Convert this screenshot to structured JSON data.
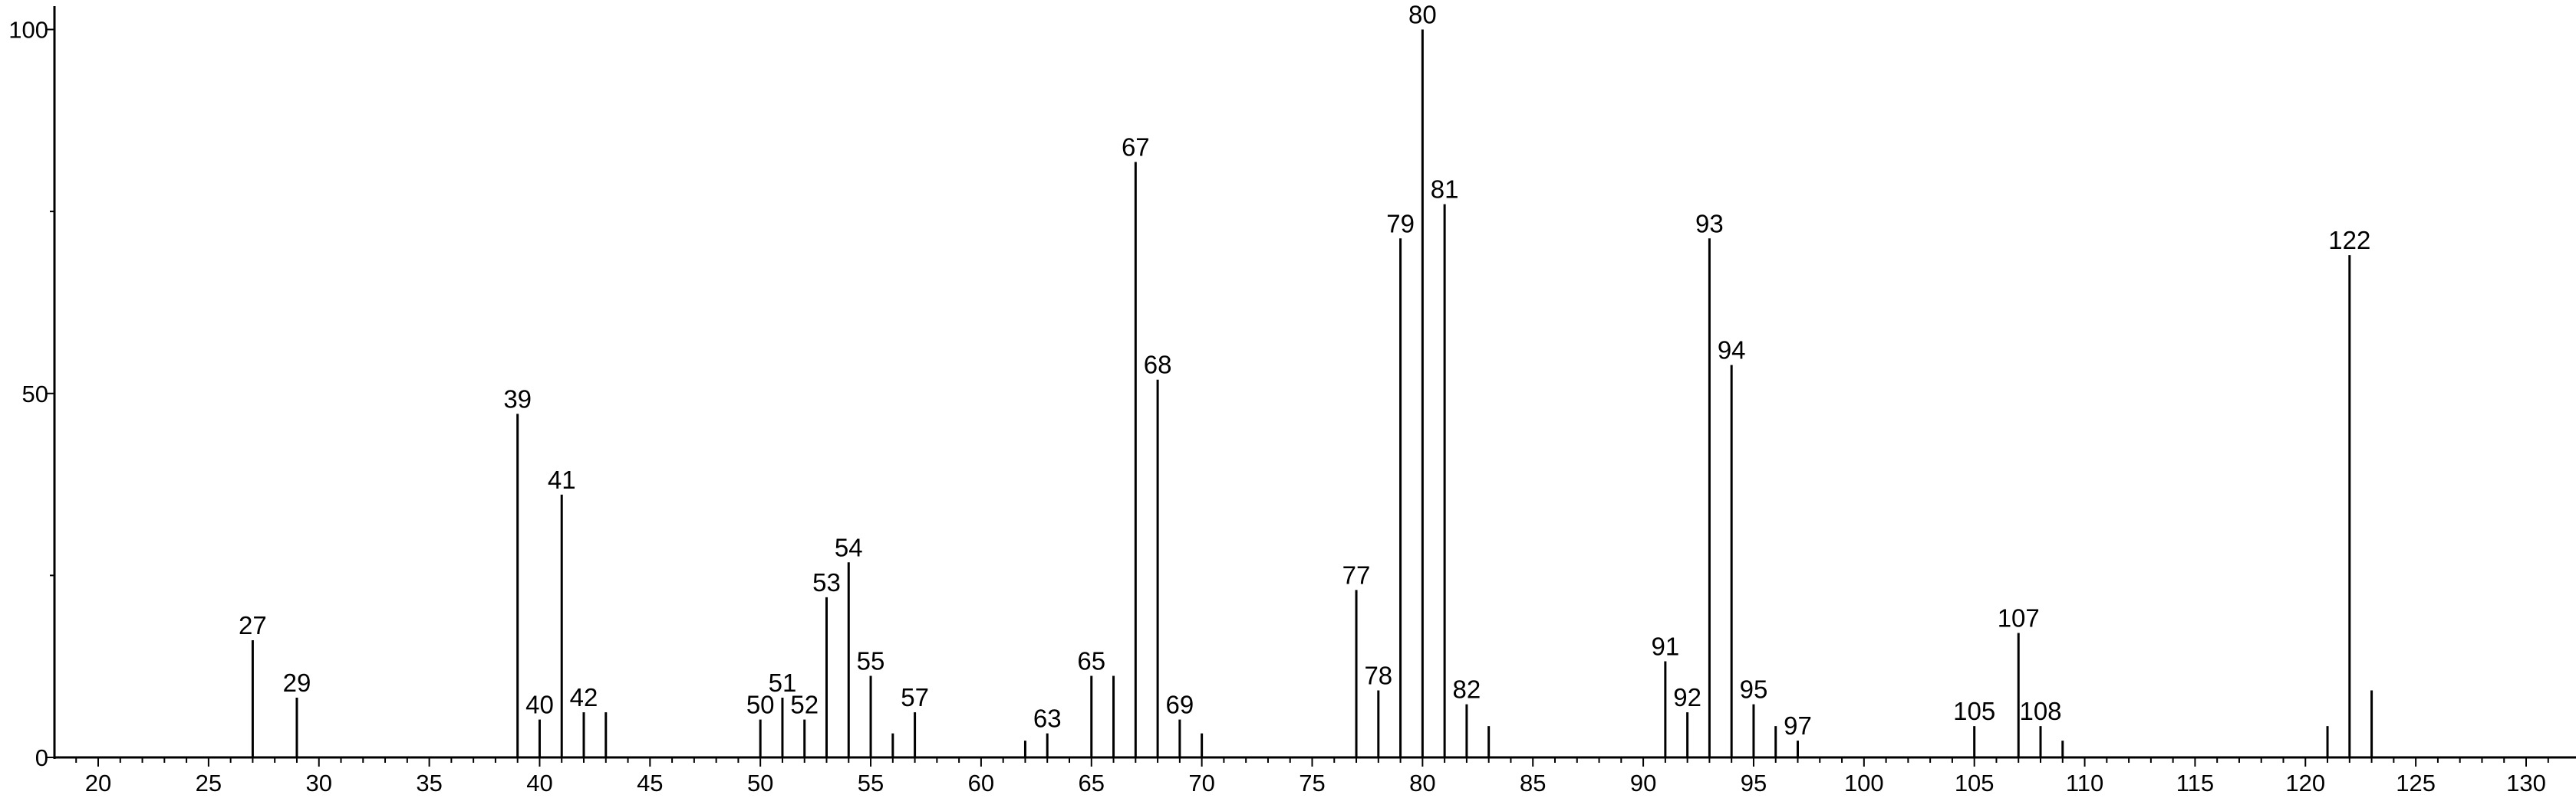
{
  "chart_data": {
    "type": "bar",
    "title": "",
    "xlabel": "",
    "ylabel": "",
    "xlim": [
      18.5,
      132
    ],
    "ylim": [
      0,
      100
    ],
    "grid": false,
    "x_major_ticks": [
      20,
      25,
      30,
      35,
      40,
      45,
      50,
      55,
      60,
      65,
      70,
      75,
      80,
      85,
      90,
      95,
      100,
      105,
      110,
      115,
      120,
      125,
      130
    ],
    "y_tick_labels": [
      0,
      50,
      100
    ],
    "y_minor_ticks": [
      25,
      75
    ],
    "color": "#000000",
    "peaks": [
      {
        "x": 27,
        "y": 16.1,
        "label": "27"
      },
      {
        "x": 29,
        "y": 8.2,
        "label": "29"
      },
      {
        "x": 39,
        "y": 47.2,
        "label": "39"
      },
      {
        "x": 40,
        "y": 5.2,
        "label": "40"
      },
      {
        "x": 41,
        "y": 36.1,
        "label": "41"
      },
      {
        "x": 42,
        "y": 6.2,
        "label": "42"
      },
      {
        "x": 43,
        "y": 6.2
      },
      {
        "x": 50,
        "y": 5.2,
        "label": "50"
      },
      {
        "x": 51,
        "y": 8.2,
        "label": "51"
      },
      {
        "x": 52,
        "y": 5.2,
        "label": "52"
      },
      {
        "x": 53,
        "y": 22.0,
        "label": "53"
      },
      {
        "x": 54,
        "y": 26.8,
        "label": "54"
      },
      {
        "x": 55,
        "y": 11.2,
        "label": "55"
      },
      {
        "x": 56,
        "y": 3.3
      },
      {
        "x": 57,
        "y": 6.2,
        "label": "57"
      },
      {
        "x": 62,
        "y": 2.3
      },
      {
        "x": 63,
        "y": 3.3,
        "label": "63"
      },
      {
        "x": 65,
        "y": 11.2,
        "label": "65"
      },
      {
        "x": 66,
        "y": 11.2
      },
      {
        "x": 67,
        "y": 81.8,
        "label": "67"
      },
      {
        "x": 68,
        "y": 51.9,
        "label": "68"
      },
      {
        "x": 69,
        "y": 5.2,
        "label": "69"
      },
      {
        "x": 70,
        "y": 3.3
      },
      {
        "x": 77,
        "y": 23.0,
        "label": "77"
      },
      {
        "x": 78,
        "y": 9.2,
        "label": "78"
      },
      {
        "x": 79,
        "y": 71.3,
        "label": "79"
      },
      {
        "x": 80,
        "y": 100,
        "label": "80"
      },
      {
        "x": 81,
        "y": 76.0,
        "label": "81"
      },
      {
        "x": 82,
        "y": 7.3,
        "label": "82"
      },
      {
        "x": 83,
        "y": 4.3
      },
      {
        "x": 91,
        "y": 13.2,
        "label": "91"
      },
      {
        "x": 92,
        "y": 6.2,
        "label": "92"
      },
      {
        "x": 93,
        "y": 71.3,
        "label": "93"
      },
      {
        "x": 94,
        "y": 53.9,
        "label": "94"
      },
      {
        "x": 95,
        "y": 7.3,
        "label": "95"
      },
      {
        "x": 96,
        "y": 4.3
      },
      {
        "x": 97,
        "y": 2.3,
        "label": "97"
      },
      {
        "x": 105,
        "y": 4.3,
        "label": "105"
      },
      {
        "x": 107,
        "y": 17.1,
        "label": "107"
      },
      {
        "x": 108,
        "y": 4.3,
        "label": "108"
      },
      {
        "x": 109,
        "y": 2.3
      },
      {
        "x": 121,
        "y": 4.3
      },
      {
        "x": 122,
        "y": 69.0,
        "label": "122"
      },
      {
        "x": 123,
        "y": 9.2
      }
    ]
  }
}
